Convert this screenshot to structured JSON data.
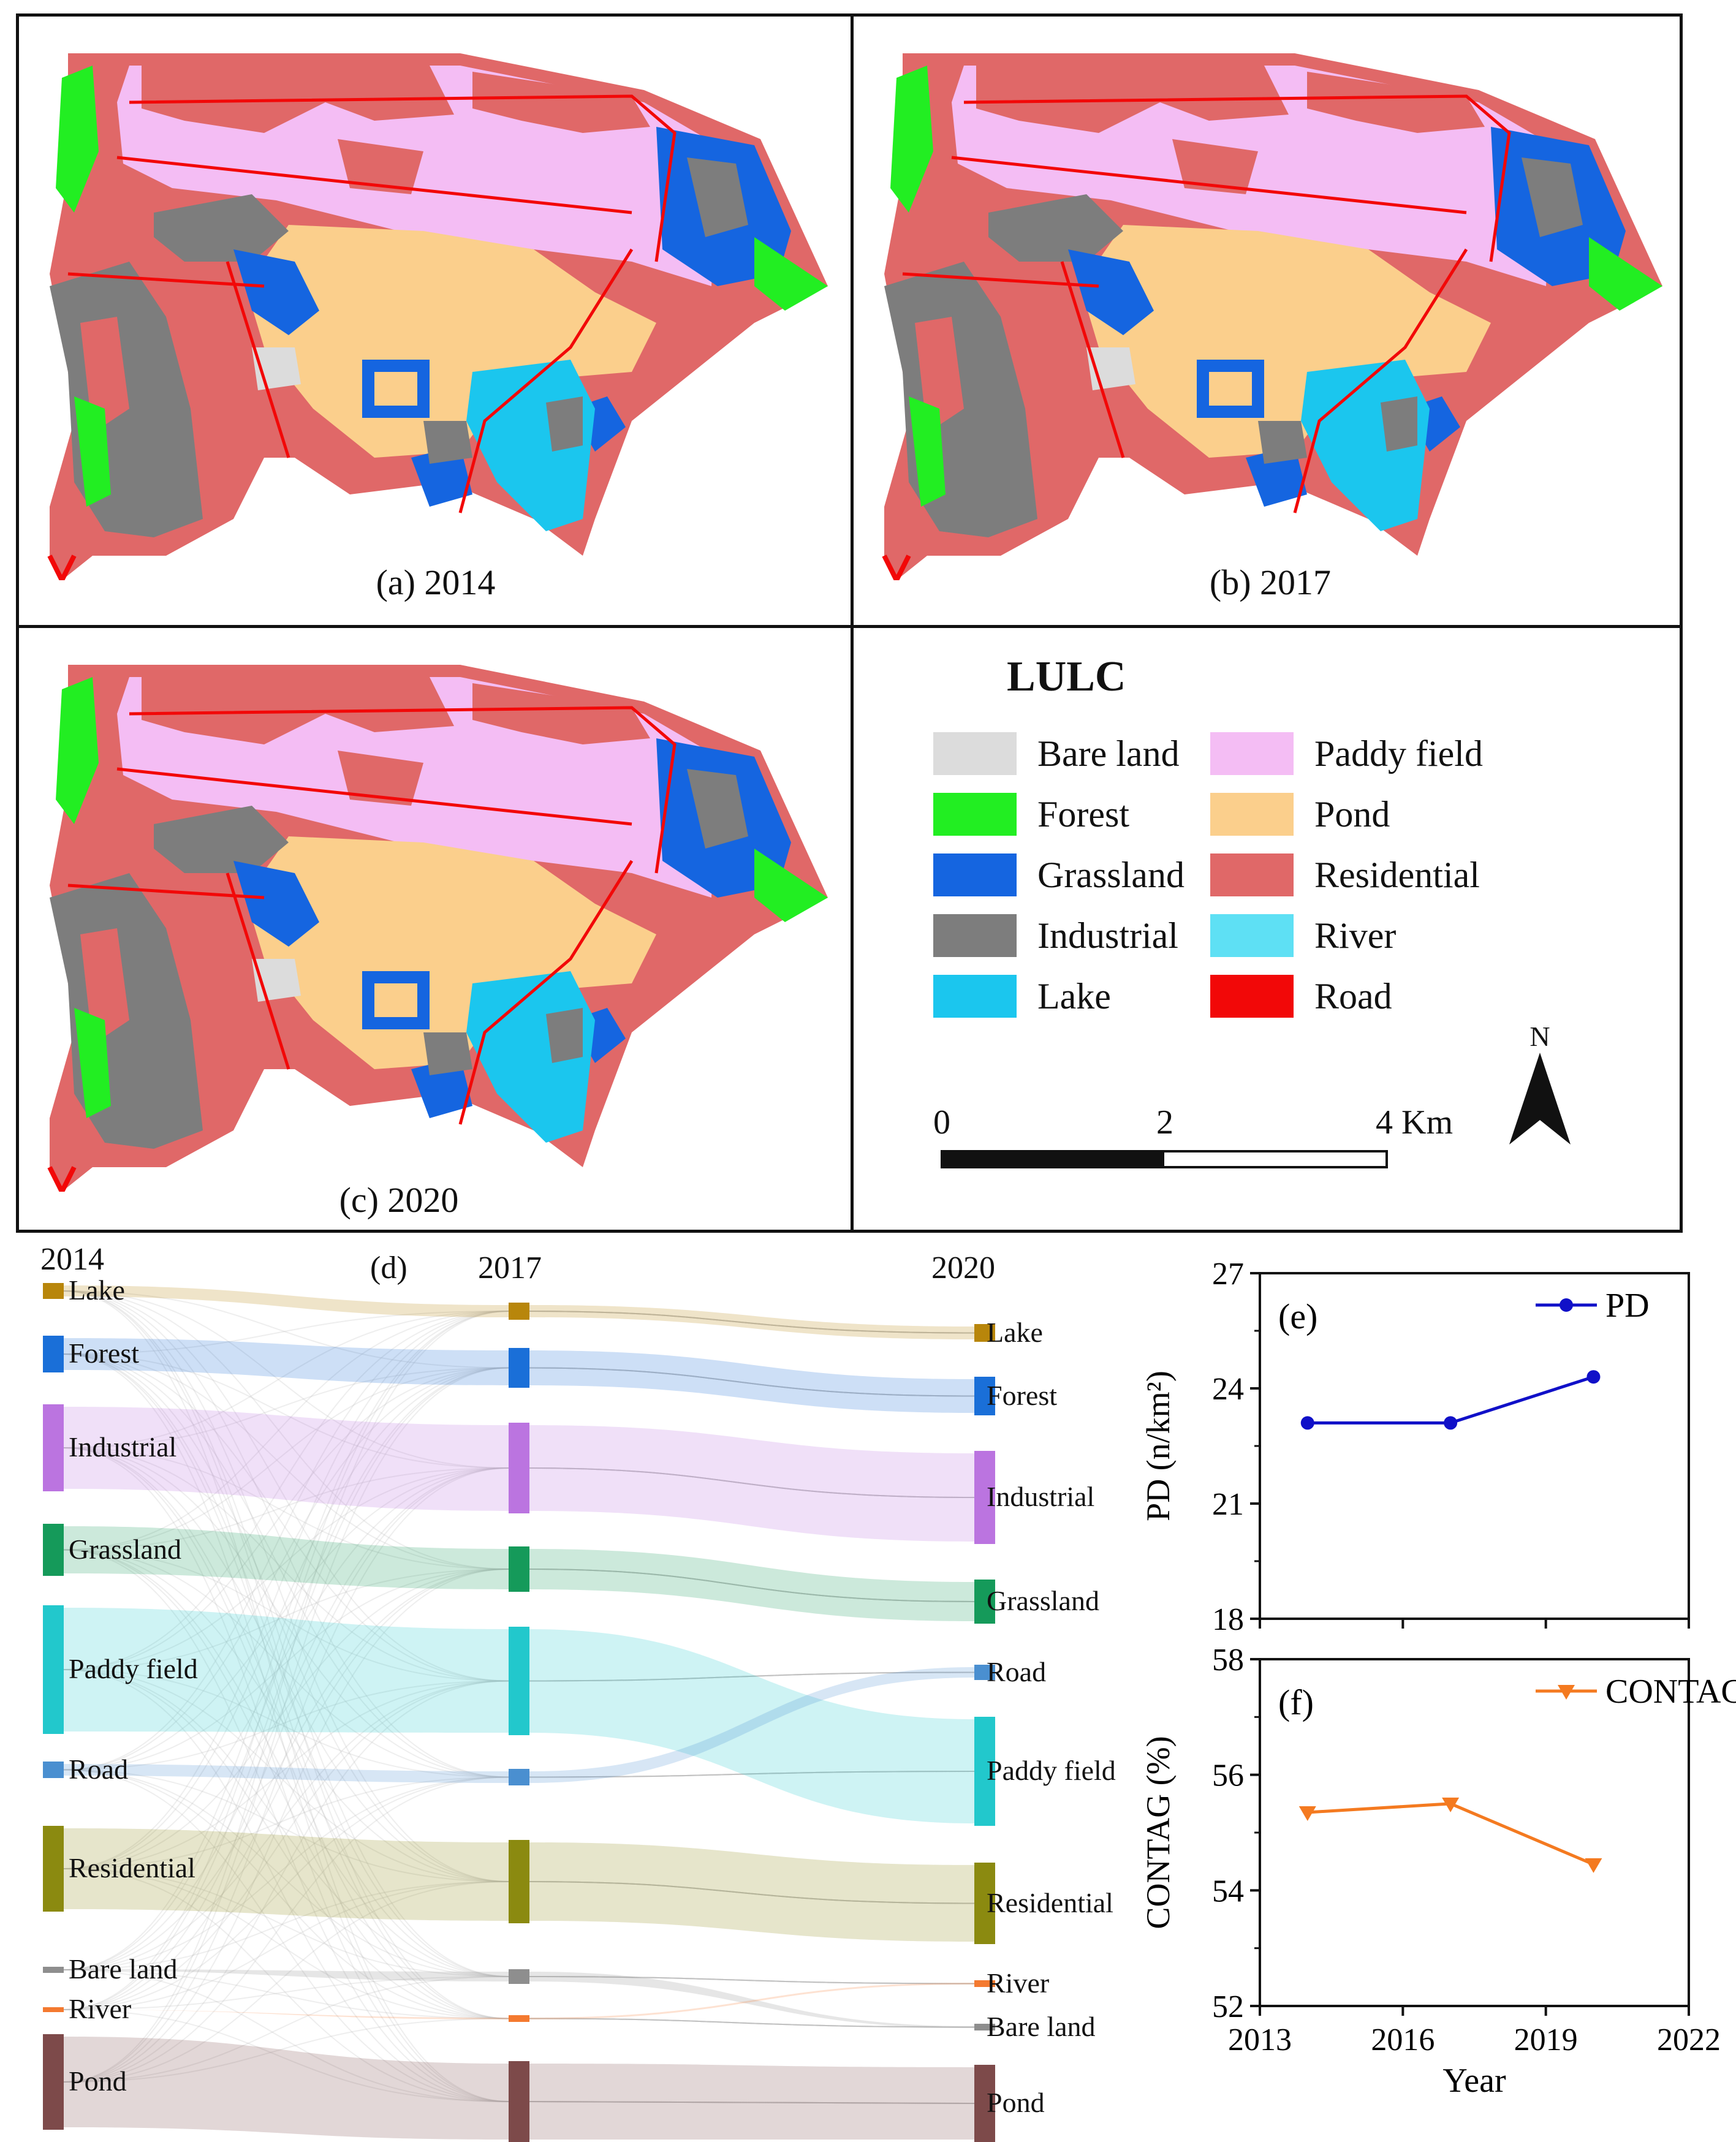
{
  "panels": {
    "a": "(a) 2014",
    "b": "(b) 2017",
    "c": "(c) 2020",
    "d": "(d)",
    "e": "(e)",
    "f": "(f)"
  },
  "legend": {
    "title": "LULC",
    "items": [
      {
        "label": "Bare land",
        "color": "#dcdcdc"
      },
      {
        "label": "Paddy field",
        "color": "#f4bdf4"
      },
      {
        "label": "Forest",
        "color": "#22ee22"
      },
      {
        "label": "Pond",
        "color": "#fbcf8c"
      },
      {
        "label": "Grassland",
        "color": "#1565e0"
      },
      {
        "label": "Residential",
        "color": "#e06868"
      },
      {
        "label": "Industrial",
        "color": "#7d7d7d"
      },
      {
        "label": "River",
        "color": "#5ee0f4"
      },
      {
        "label": "Lake",
        "color": "#1bc6ee"
      },
      {
        "label": "Road",
        "color": "#f20808"
      }
    ]
  },
  "north_label": "N",
  "scale": {
    "t0": "0",
    "t1": "2",
    "t2": "4 Km"
  },
  "sankey": {
    "years": [
      "2014",
      "2017",
      "2020"
    ],
    "col2014": [
      {
        "label": "Lake",
        "color": "#b8860b"
      },
      {
        "label": "Forest",
        "color": "#1a6fd8"
      },
      {
        "label": "Industrial",
        "color": "#bb74e0"
      },
      {
        "label": "Grassland",
        "color": "#159a5a"
      },
      {
        "label": "Paddy field",
        "color": "#22c8cc"
      },
      {
        "label": "Road",
        "color": "#4a8fd0"
      },
      {
        "label": "Residential",
        "color": "#8b8a10"
      },
      {
        "label": "Bare land",
        "color": "#8e8e8e"
      },
      {
        "label": "River",
        "color": "#f47a30"
      },
      {
        "label": "Pond",
        "color": "#7d4a4a"
      }
    ],
    "col2020": [
      {
        "label": "Lake",
        "color": "#b8860b"
      },
      {
        "label": "Forest",
        "color": "#1a6fd8"
      },
      {
        "label": "Industrial",
        "color": "#bb74e0"
      },
      {
        "label": "Grassland",
        "color": "#159a5a"
      },
      {
        "label": "Road",
        "color": "#4a8fd0"
      },
      {
        "label": "Paddy field",
        "color": "#22c8cc"
      },
      {
        "label": "Residential",
        "color": "#8b8a10"
      },
      {
        "label": "River",
        "color": "#f47a30"
      },
      {
        "label": "Bare land",
        "color": "#8e8e8e"
      },
      {
        "label": "Pond",
        "color": "#7d4a4a"
      }
    ]
  },
  "chart_data": [
    {
      "type": "line",
      "series": [
        {
          "name": "PD",
          "x": [
            2014,
            2017,
            2020
          ],
          "values": [
            23.1,
            23.1,
            24.3
          ],
          "color": "#1010c8"
        }
      ],
      "ylabel": "PD (n/km²)",
      "ylim": [
        18,
        27
      ],
      "yticks": [
        "27",
        "24",
        "21",
        "18"
      ],
      "xlim": [
        2013,
        2022
      ]
    },
    {
      "type": "line",
      "series": [
        {
          "name": "CONTAG",
          "x": [
            2014,
            2017,
            2020
          ],
          "values": [
            55.35,
            55.5,
            54.45
          ],
          "color": "#f47a20"
        }
      ],
      "ylabel": "CONTAG (%)",
      "ylim": [
        52,
        58
      ],
      "yticks": [
        "58",
        "56",
        "54",
        "52"
      ],
      "xlim": [
        2013,
        2022
      ],
      "xlabel": "Year",
      "xticks": [
        "2013",
        "2016",
        "2019",
        "2022"
      ]
    }
  ]
}
